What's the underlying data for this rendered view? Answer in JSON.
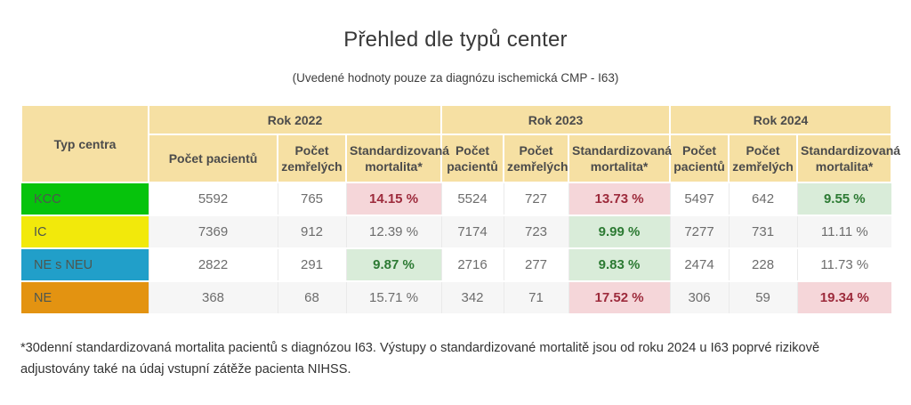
{
  "chart_data": {
    "type": "table",
    "title": "Přehled dle typů center",
    "subtitle": "(Uvedené hodnoty pouze za diagnózu ischemická CMP - I63)",
    "corner_header": "Typ centra",
    "year_groups": [
      "Rok 2022",
      "Rok 2023",
      "Rok 2024"
    ],
    "sub_headers": [
      "Počet pacientů",
      "Počet zemřelých",
      "Standardizovaná mortalita*"
    ],
    "rows": [
      {
        "label": "KCC",
        "label_color": "#06c30c",
        "cells": [
          {
            "value": "5592",
            "highlight": "none"
          },
          {
            "value": "765",
            "highlight": "none"
          },
          {
            "value": "14.15 %",
            "highlight": "bad"
          },
          {
            "value": "5524",
            "highlight": "none"
          },
          {
            "value": "727",
            "highlight": "none"
          },
          {
            "value": "13.73 %",
            "highlight": "bad"
          },
          {
            "value": "5497",
            "highlight": "none"
          },
          {
            "value": "642",
            "highlight": "none"
          },
          {
            "value": "9.55 %",
            "highlight": "good"
          }
        ]
      },
      {
        "label": "IC",
        "label_color": "#f2e90b",
        "cells": [
          {
            "value": "7369",
            "highlight": "none"
          },
          {
            "value": "912",
            "highlight": "none"
          },
          {
            "value": "12.39 %",
            "highlight": "none"
          },
          {
            "value": "7174",
            "highlight": "none"
          },
          {
            "value": "723",
            "highlight": "none"
          },
          {
            "value": "9.99 %",
            "highlight": "good"
          },
          {
            "value": "7277",
            "highlight": "none"
          },
          {
            "value": "731",
            "highlight": "none"
          },
          {
            "value": "11.11 %",
            "highlight": "none"
          }
        ]
      },
      {
        "label": "NE s NEU",
        "label_color": "#219fc9",
        "cells": [
          {
            "value": "2822",
            "highlight": "none"
          },
          {
            "value": "291",
            "highlight": "none"
          },
          {
            "value": "9.87 %",
            "highlight": "good"
          },
          {
            "value": "2716",
            "highlight": "none"
          },
          {
            "value": "277",
            "highlight": "none"
          },
          {
            "value": "9.83 %",
            "highlight": "good"
          },
          {
            "value": "2474",
            "highlight": "none"
          },
          {
            "value": "228",
            "highlight": "none"
          },
          {
            "value": "11.73 %",
            "highlight": "none"
          }
        ]
      },
      {
        "label": "NE",
        "label_color": "#e39311",
        "cells": [
          {
            "value": "368",
            "highlight": "none"
          },
          {
            "value": "68",
            "highlight": "none"
          },
          {
            "value": "15.71 %",
            "highlight": "none"
          },
          {
            "value": "342",
            "highlight": "none"
          },
          {
            "value": "71",
            "highlight": "none"
          },
          {
            "value": "17.52 %",
            "highlight": "bad"
          },
          {
            "value": "306",
            "highlight": "none"
          },
          {
            "value": "59",
            "highlight": "none"
          },
          {
            "value": "19.34 %",
            "highlight": "bad"
          }
        ]
      }
    ],
    "footnote": "*30denní standardizovaná mortalita pacientů s diagnózou I63. Výstupy o standardizované mortalitě jsou od roku 2024 u I63 poprvé rizikově adjustovány také na údaj vstupní zátěže pacienta NIHSS.",
    "layout_hints": {
      "grid": "two-level header, striped rows",
      "legend_position": "none"
    }
  },
  "colors": {
    "header_bg": "#f6e0a3",
    "row_stripe": "#f6f6f6",
    "bad_bg": "#f5d6d9",
    "bad_text": "#9d2b3c",
    "good_bg": "#d9ecd9",
    "good_text": "#2c7a33",
    "kcc_green": "#06c30c",
    "ic_yellow": "#f2e90b",
    "ne_s_neu_blue": "#219fc9",
    "ne_orange": "#e39311"
  }
}
